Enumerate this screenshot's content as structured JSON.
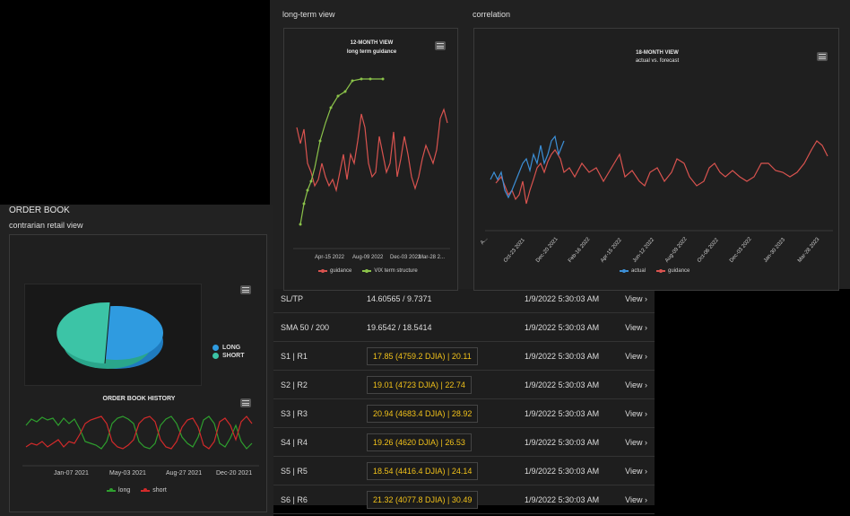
{
  "top_panel": {
    "long_term_title": "long-term view",
    "correlation_title": "correlation",
    "long_term_chart": {
      "title1": "12-MONTH VIEW",
      "title2": "long term guidance",
      "x_ticks": [
        "Apr-15 2022",
        "Aug-09 2022",
        "Dec-03 2022",
        "Mar-28 2..."
      ],
      "legend": [
        "guidance",
        "VIX term structure"
      ]
    },
    "correlation_chart": {
      "title1": "18-MONTH VIEW",
      "title2": "actual vs. forecast",
      "x_ticks": [
        "A...",
        "Oct-23 2021",
        "Dec-20 2021",
        "Feb-16 2022",
        "Apr-15 2022",
        "Jun-12 2022",
        "Aug-09 2022",
        "Oct-06 2022",
        "Dec-03 2022",
        "Jan-30 2023",
        "Mar-28 2023"
      ],
      "legend": [
        "actual",
        "guidance"
      ]
    }
  },
  "order_book": {
    "title": "ORDER BOOK",
    "subtitle": "contrarian retail view",
    "pie_legend": [
      "LONG",
      "SHORT"
    ],
    "history_title": "ORDER BOOK HISTORY",
    "history_ticks": [
      "Jan-07 2021",
      "May-03 2021",
      "Aug-27 2021",
      "Dec-20 2021"
    ],
    "history_legend": [
      "long",
      "short"
    ]
  },
  "levels": {
    "rows": [
      {
        "label": "SL/TP",
        "value": "14.60565 / 9.7371",
        "boxed": false,
        "time": "1/9/2022 5:30:03 AM",
        "link": "View ›"
      },
      {
        "label": "SMA 50 / 200",
        "value": "19.6542 / 18.5414",
        "boxed": false,
        "time": "1/9/2022 5:30:03 AM",
        "link": "View ›"
      },
      {
        "label": "S1 | R1",
        "value": "17.85 (4759.2 DJIA) | 20.11",
        "boxed": true,
        "time": "1/9/2022 5:30:03 AM",
        "link": "View ›"
      },
      {
        "label": "S2 | R2",
        "value": "19.01 (4723 DJIA) | 22.74",
        "boxed": true,
        "time": "1/9/2022 5:30:03 AM",
        "link": "View ›"
      },
      {
        "label": "S3 | R3",
        "value": "20.94 (4683.4 DJIA) | 28.92",
        "boxed": true,
        "time": "1/9/2022 5:30:03 AM",
        "link": "View ›"
      },
      {
        "label": "S4 | R4",
        "value": "19.26 (4620 DJIA) | 26.53",
        "boxed": true,
        "time": "1/9/2022 5:30:03 AM",
        "link": "View ›"
      },
      {
        "label": "S5 | R5",
        "value": "18.54 (4416.4 DJIA) | 24.14",
        "boxed": true,
        "time": "1/9/2022 5:30:03 AM",
        "link": "View ›"
      },
      {
        "label": "S6 | R6",
        "value": "21.32 (4077.8 DJIA) | 30.49",
        "boxed": true,
        "time": "1/9/2022 5:30:03 AM",
        "link": "View ›"
      }
    ]
  },
  "colors": {
    "guidance": "#d9534f",
    "vix": "#8bc34a",
    "actual": "#3c8fd6",
    "long_pie": "#2f9be0",
    "short_pie": "#3cc4a6",
    "long_hist": "#2e9e2e",
    "short_hist": "#d22a2a",
    "link": "#39a3ff",
    "value_text": "#f2c21a"
  }
}
